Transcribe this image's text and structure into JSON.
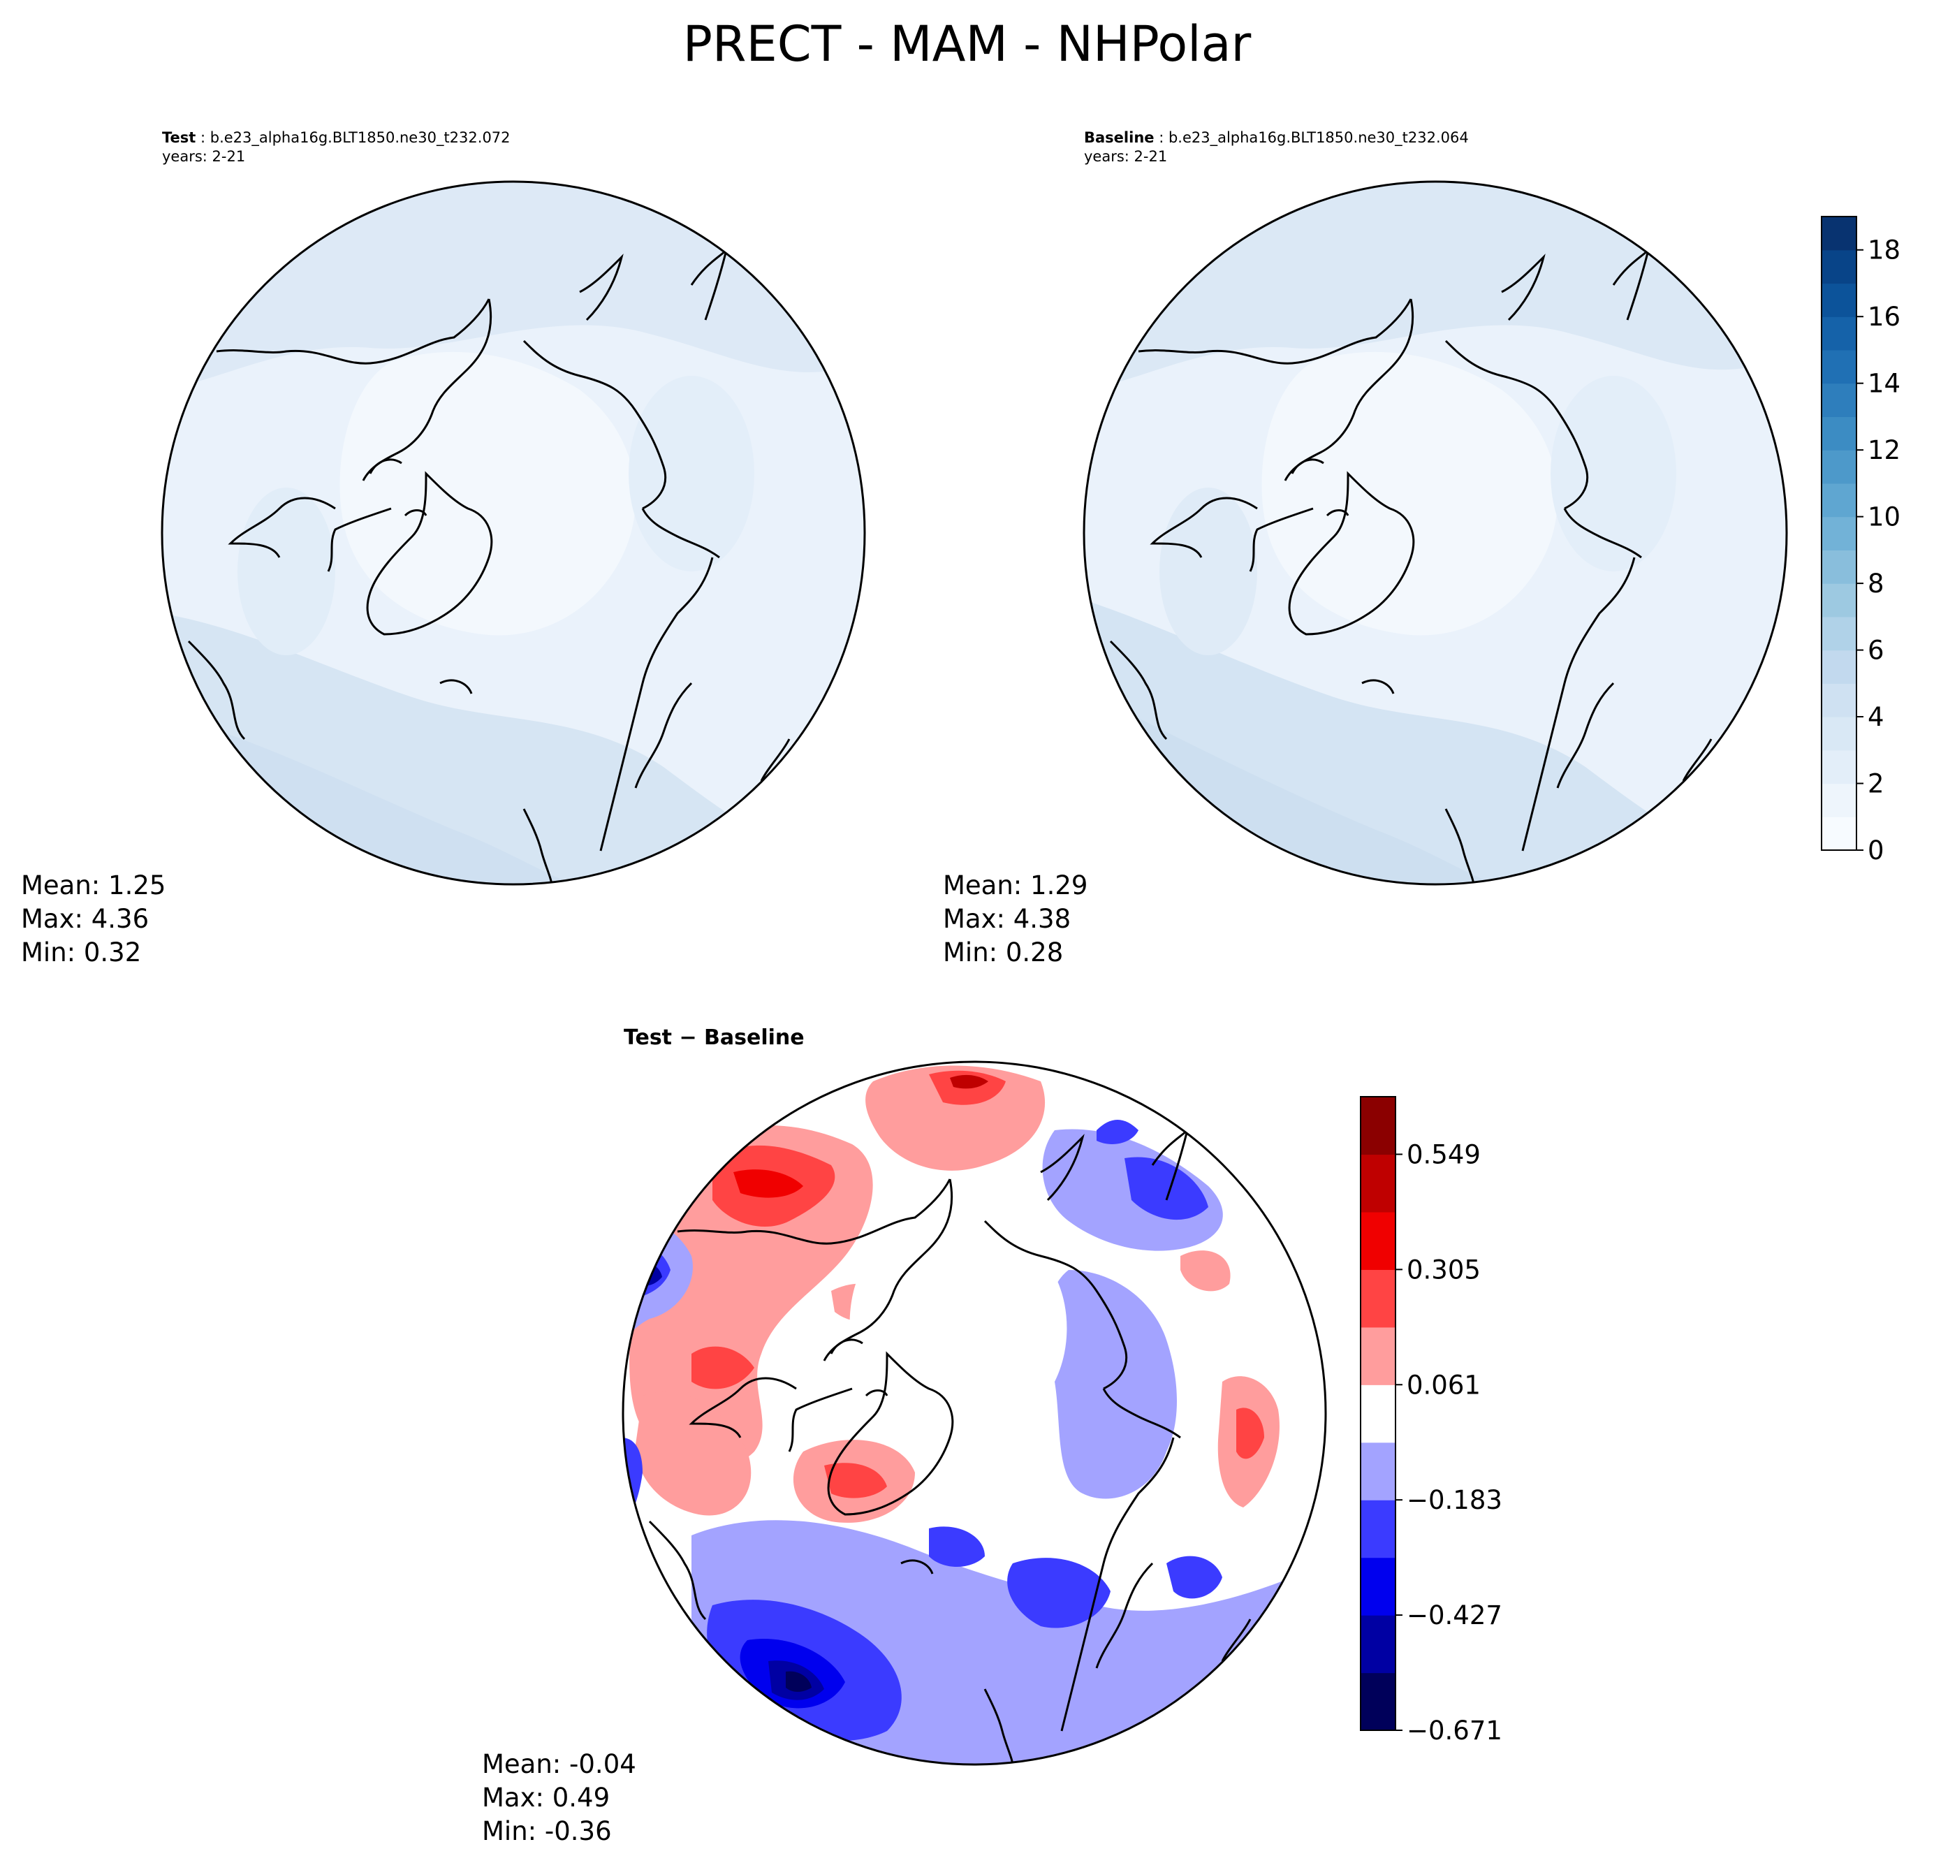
{
  "title": "PRECT - MAM - NHPolar",
  "panels": [
    {
      "id": "test",
      "label": "Test",
      "case": " : b.e23_alpha16g.BLT1850.ne30_t232.072",
      "years": "years: 2-21",
      "stats": {
        "mean": "Mean:  1.25",
        "max": "Max:  4.36",
        "min": "Min:  0.32"
      }
    },
    {
      "id": "baseline",
      "label": "Baseline",
      "case": " : b.e23_alpha16g.BLT1850.ne30_t232.064",
      "years": "years: 2-21",
      "stats": {
        "mean": "Mean:  1.29",
        "max": "Max:  4.38",
        "min": "Min:  0.28"
      }
    },
    {
      "id": "diff",
      "label": "Test − Baseline",
      "stats": {
        "mean": "Mean: -0.04",
        "max": "Max:  0.49",
        "min": "Min: -0.36"
      }
    }
  ],
  "colorbars": {
    "main": {
      "ticks": [
        "0",
        "2",
        "4",
        "6",
        "8",
        "10",
        "12",
        "14",
        "16",
        "18"
      ],
      "tick_values": [
        0,
        2,
        4,
        6,
        8,
        10,
        12,
        14,
        16,
        18
      ],
      "range": [
        0,
        19
      ],
      "colors": [
        "#f7fbff",
        "#eef5fc",
        "#e3eef9",
        "#d9e8f5",
        "#cfe1f2",
        "#c2d9ee",
        "#b0d2e8",
        "#9dc9e1",
        "#89bedc",
        "#72b2d7",
        "#5fa6d1",
        "#4d99ca",
        "#3c8cc3",
        "#2e7ebc",
        "#2070b4",
        "#1562a9",
        "#0c539a",
        "#084488",
        "#083370"
      ]
    },
    "diff": {
      "ticks": [
        "0.549",
        "0.305",
        "0.061",
        "−0.183",
        "−0.427",
        "−0.671"
      ],
      "tick_values": [
        0.549,
        0.305,
        0.061,
        -0.183,
        -0.427,
        -0.671
      ],
      "range": [
        -0.671,
        0.671
      ],
      "colors": [
        "#00005a",
        "#0000a3",
        "#0000ee",
        "#3b3bff",
        "#a3a3ff",
        "#ffffff",
        "#ff9d9d",
        "#ff4444",
        "#f00000",
        "#bf0000",
        "#8b0000"
      ]
    }
  }
}
